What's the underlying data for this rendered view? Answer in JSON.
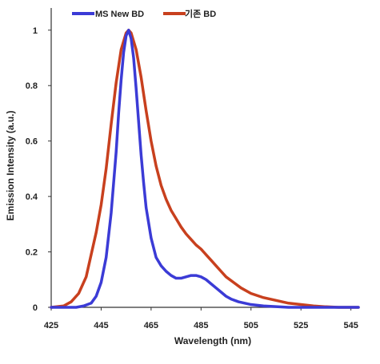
{
  "chart_data": {
    "type": "line",
    "title": "",
    "xlabel": "Wavelength (nm)",
    "ylabel": "Emission Intensity (a.u.)",
    "xlim": [
      425,
      548
    ],
    "ylim": [
      0,
      1.08
    ],
    "xticks": [
      "425",
      "445",
      "465",
      "485",
      "505",
      "525",
      "545"
    ],
    "yticks": [
      "0",
      "0.2",
      "0.4",
      "0.6",
      "0.8",
      "1"
    ],
    "grid": false,
    "legend_position": "top",
    "series": [
      {
        "name": "MS New BD",
        "color": "#3b3bd6",
        "x": [
          425,
          430,
          435,
          438,
          441,
          443,
          445,
          447,
          449,
          451,
          452,
          453,
          454,
          455,
          456,
          457,
          458,
          459,
          460,
          461,
          462,
          463,
          465,
          467,
          469,
          471,
          473,
          475,
          477,
          479,
          481,
          483,
          485,
          487,
          489,
          491,
          493,
          495,
          497,
          500,
          505,
          510,
          520,
          530,
          548
        ],
        "y": [
          0,
          0,
          0,
          0.005,
          0.015,
          0.04,
          0.09,
          0.18,
          0.34,
          0.56,
          0.7,
          0.82,
          0.92,
          0.98,
          1.0,
          0.97,
          0.9,
          0.79,
          0.67,
          0.55,
          0.45,
          0.36,
          0.25,
          0.18,
          0.15,
          0.13,
          0.115,
          0.105,
          0.105,
          0.11,
          0.115,
          0.115,
          0.11,
          0.1,
          0.085,
          0.07,
          0.055,
          0.04,
          0.03,
          0.02,
          0.01,
          0.005,
          0,
          0,
          0
        ]
      },
      {
        "name": "기존 BD",
        "color": "#c8401e",
        "x": [
          425,
          430,
          433,
          436,
          439,
          441,
          443,
          445,
          447,
          449,
          451,
          453,
          455,
          456,
          457,
          459,
          461,
          463,
          465,
          467,
          469,
          471,
          473,
          475,
          477,
          479,
          481,
          483,
          485,
          487,
          489,
          491,
          493,
          495,
          498,
          501,
          505,
          510,
          515,
          520,
          525,
          530,
          535,
          540,
          548
        ],
        "y": [
          0,
          0.005,
          0.02,
          0.05,
          0.11,
          0.19,
          0.27,
          0.37,
          0.5,
          0.66,
          0.81,
          0.93,
          0.99,
          1.0,
          0.99,
          0.93,
          0.83,
          0.71,
          0.6,
          0.51,
          0.44,
          0.39,
          0.35,
          0.32,
          0.29,
          0.265,
          0.245,
          0.225,
          0.21,
          0.19,
          0.17,
          0.15,
          0.13,
          0.11,
          0.09,
          0.07,
          0.05,
          0.035,
          0.025,
          0.015,
          0.01,
          0.005,
          0.002,
          0,
          0
        ]
      }
    ]
  }
}
